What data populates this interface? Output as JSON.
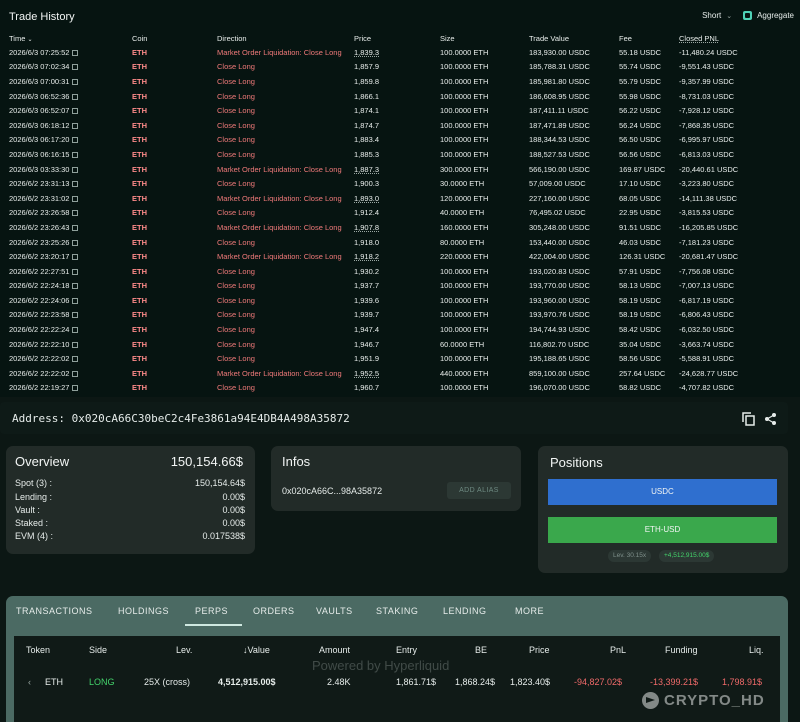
{
  "trade_history": {
    "title": "Trade History",
    "side_select": "Short",
    "aggregate_label": "Aggregate",
    "columns": [
      "Time",
      "Coin",
      "Direction",
      "Price",
      "Size",
      "Trade Value",
      "Fee",
      "Closed PNL"
    ],
    "rows": [
      [
        "2026/6/3 07:25:52",
        "ETH",
        "Market Order Liquidation: Close Long",
        "1,839.3",
        "100.0000 ETH",
        "183,930.00 USDC",
        "55.18 USDC",
        "-11,480.24 USDC"
      ],
      [
        "2026/6/3 07:02:34",
        "ETH",
        "Close Long",
        "1,857.9",
        "100.0000 ETH",
        "185,788.31 USDC",
        "55.74 USDC",
        "-9,551.43 USDC"
      ],
      [
        "2026/6/3 07:00:31",
        "ETH",
        "Close Long",
        "1,859.8",
        "100.0000 ETH",
        "185,981.80 USDC",
        "55.79 USDC",
        "-9,357.99 USDC"
      ],
      [
        "2026/6/3 06:52:36",
        "ETH",
        "Close Long",
        "1,866.1",
        "100.0000 ETH",
        "186,608.95 USDC",
        "55.98 USDC",
        "-8,731.03 USDC"
      ],
      [
        "2026/6/3 06:52:07",
        "ETH",
        "Close Long",
        "1,874.1",
        "100.0000 ETH",
        "187,411.11 USDC",
        "56.22 USDC",
        "-7,928.12 USDC"
      ],
      [
        "2026/6/3 06:18:12",
        "ETH",
        "Close Long",
        "1,874.7",
        "100.0000 ETH",
        "187,471.89 USDC",
        "56.24 USDC",
        "-7,868.35 USDC"
      ],
      [
        "2026/6/3 06:17:20",
        "ETH",
        "Close Long",
        "1,883.4",
        "100.0000 ETH",
        "188,344.53 USDC",
        "56.50 USDC",
        "-6,995.97 USDC"
      ],
      [
        "2026/6/3 06:16:15",
        "ETH",
        "Close Long",
        "1,885.3",
        "100.0000 ETH",
        "188,527.53 USDC",
        "56.56 USDC",
        "-6,813.03 USDC"
      ],
      [
        "2026/6/3 03:33:30",
        "ETH",
        "Market Order Liquidation: Close Long",
        "1,887.3",
        "300.0000 ETH",
        "566,190.00 USDC",
        "169.87 USDC",
        "-20,440.61 USDC"
      ],
      [
        "2026/6/2 23:31:13",
        "ETH",
        "Close Long",
        "1,900.3",
        "30.0000 ETH",
        "57,009.00 USDC",
        "17.10 USDC",
        "-3,223.80 USDC"
      ],
      [
        "2026/6/2 23:31:02",
        "ETH",
        "Market Order Liquidation: Close Long",
        "1,893.0",
        "120.0000 ETH",
        "227,160.00 USDC",
        "68.05 USDC",
        "-14,111.38 USDC"
      ],
      [
        "2026/6/2 23:26:58",
        "ETH",
        "Close Long",
        "1,912.4",
        "40.0000 ETH",
        "76,495.02 USDC",
        "22.95 USDC",
        "-3,815.53 USDC"
      ],
      [
        "2026/6/2 23:26:43",
        "ETH",
        "Market Order Liquidation: Close Long",
        "1,907.8",
        "160.0000 ETH",
        "305,248.00 USDC",
        "91.51 USDC",
        "-16,205.85 USDC"
      ],
      [
        "2026/6/2 23:25:26",
        "ETH",
        "Close Long",
        "1,918.0",
        "80.0000 ETH",
        "153,440.00 USDC",
        "46.03 USDC",
        "-7,181.23 USDC"
      ],
      [
        "2026/6/2 23:20:17",
        "ETH",
        "Market Order Liquidation: Close Long",
        "1,918.2",
        "220.0000 ETH",
        "422,004.00 USDC",
        "126.31 USDC",
        "-20,681.47 USDC"
      ],
      [
        "2026/6/2 22:27:51",
        "ETH",
        "Close Long",
        "1,930.2",
        "100.0000 ETH",
        "193,020.83 USDC",
        "57.91 USDC",
        "-7,756.08 USDC"
      ],
      [
        "2026/6/2 22:24:18",
        "ETH",
        "Close Long",
        "1,937.7",
        "100.0000 ETH",
        "193,770.00 USDC",
        "58.13 USDC",
        "-7,007.13 USDC"
      ],
      [
        "2026/6/2 22:24:06",
        "ETH",
        "Close Long",
        "1,939.6",
        "100.0000 ETH",
        "193,960.00 USDC",
        "58.19 USDC",
        "-6,817.19 USDC"
      ],
      [
        "2026/6/2 22:23:58",
        "ETH",
        "Close Long",
        "1,939.7",
        "100.0000 ETH",
        "193,970.76 USDC",
        "58.19 USDC",
        "-6,806.43 USDC"
      ],
      [
        "2026/6/2 22:22:24",
        "ETH",
        "Close Long",
        "1,947.4",
        "100.0000 ETH",
        "194,744.93 USDC",
        "58.42 USDC",
        "-6,032.50 USDC"
      ],
      [
        "2026/6/2 22:22:10",
        "ETH",
        "Close Long",
        "1,946.7",
        "60.0000 ETH",
        "116,802.70 USDC",
        "35.04 USDC",
        "-3,663.74 USDC"
      ],
      [
        "2026/6/2 22:22:02",
        "ETH",
        "Close Long",
        "1,951.9",
        "100.0000 ETH",
        "195,188.65 USDC",
        "58.56 USDC",
        "-5,588.91 USDC"
      ],
      [
        "2026/6/2 22:22:02",
        "ETH",
        "Market Order Liquidation: Close Long",
        "1,952.5",
        "440.0000 ETH",
        "859,100.00 USDC",
        "257.64 USDC",
        "-24,628.77 USDC"
      ],
      [
        "2026/6/2 22:19:27",
        "ETH",
        "Close Long",
        "1,960.7",
        "100.0000 ETH",
        "196,070.00 USDC",
        "58.82 USDC",
        "-4,707.82 USDC"
      ]
    ]
  },
  "address_bar": {
    "label": "Address:",
    "address": "0x020cA66C30beC2c4Fe3861a94E4DB4A498A35872"
  },
  "overview": {
    "title": "Overview",
    "total": "150,154.66$",
    "rows": [
      {
        "label": "Spot (3) :",
        "value": "150,154.64$"
      },
      {
        "label": "Lending :",
        "value": "0.00$"
      },
      {
        "label": "Vault :",
        "value": "0.00$"
      },
      {
        "label": "Staked :",
        "value": "0.00$"
      },
      {
        "label": "EVM (4) :",
        "value": "0.017538$"
      }
    ]
  },
  "infos": {
    "title": "Infos",
    "short_address": "0x020cA66C...98A35872",
    "add_alias_label": "ADD ALIAS"
  },
  "positions": {
    "title": "Positions",
    "usdc_label": "USDC",
    "eth_label": "ETH-USD",
    "leverage_pill": "Lev. 30.15x",
    "pnl_pill": "+4,512,915.00$"
  },
  "tabs": [
    "TRANSACTIONS",
    "HOLDINGS",
    "PERPS",
    "ORDERS",
    "VAULTS",
    "STAKING",
    "LENDING",
    "MORE"
  ],
  "perps_table": {
    "headers": {
      "token": "Token",
      "side": "Side",
      "lev": "Lev.",
      "value": "Value",
      "amount": "Amount",
      "entry": "Entry",
      "be": "BE",
      "price": "Price",
      "pnl": "PnL",
      "funding": "Funding",
      "liq": "Liq."
    },
    "row": {
      "token": "ETH",
      "side": "LONG",
      "lev": "25X (cross)",
      "value": "4,512,915.00$",
      "amount": "2.48K",
      "entry": "1,861.71$",
      "be": "1,868.24$",
      "price": "1,823.40$",
      "pnl": "-94,827.02$",
      "funding": "-13,399.21$",
      "liq": "1,798.91$"
    }
  },
  "watermark": "Powered by Hyperliquid",
  "brand": "CRYPTO_HD",
  "colors": {
    "accent_teal": "#4fd1b6",
    "usdc_blue": "#2f6fcf",
    "eth_green": "#3aa84c",
    "loss_red": "#f06a6a",
    "long_green": "#43d36b"
  }
}
